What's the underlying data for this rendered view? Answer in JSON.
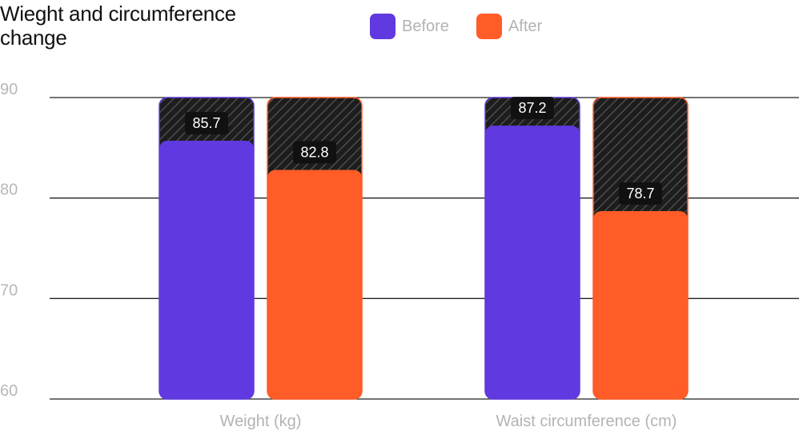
{
  "chart_data": {
    "type": "bar",
    "title": "Wieght and circumference change",
    "categories": [
      "Weight (kg)",
      "Waist circumference (cm)"
    ],
    "series": [
      {
        "name": "Before",
        "values": [
          85.7,
          87.2
        ],
        "color": "#6039e0"
      },
      {
        "name": "After",
        "values": [
          82.8,
          78.7
        ],
        "color": "#ff5c28"
      }
    ],
    "yticks": [
      60,
      70,
      80,
      90
    ],
    "ylim": [
      60,
      90
    ],
    "grid": true,
    "legend_position": "top"
  }
}
